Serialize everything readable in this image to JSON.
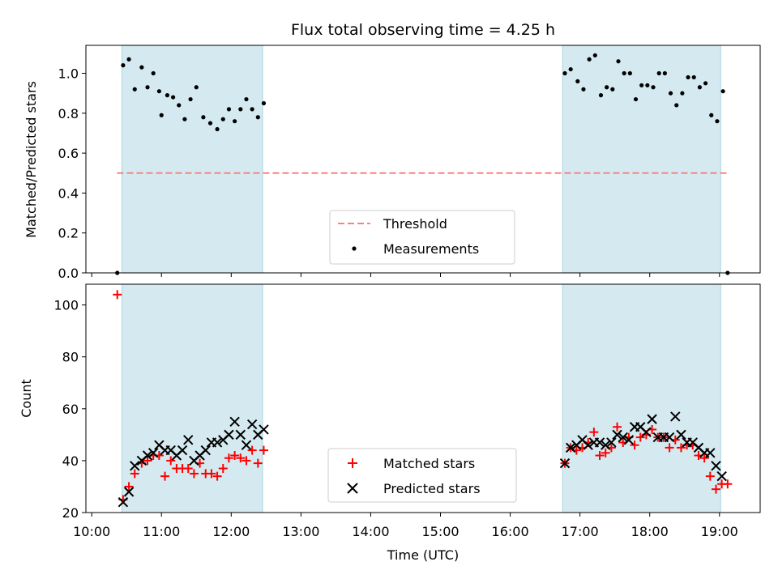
{
  "chart_data": [
    {
      "type": "scatter",
      "title": "Flux total observing time = 4.25 h",
      "xlabel": "",
      "ylabel": "Matched/Predicted stars",
      "ylim": [
        0,
        1.14
      ],
      "yticks": [
        0.0,
        0.2,
        0.4,
        0.6,
        0.8,
        1.0
      ],
      "ytick_labels": [
        "0.0",
        "0.2",
        "0.4",
        "0.6",
        "0.8",
        "1.0"
      ],
      "threshold": 0.5,
      "threshold_color": "#ff7f7f",
      "shaded_color": "#d4eaf0",
      "shaded_intervals": [
        [
          "10:26",
          "12:27"
        ],
        [
          "16:45",
          "19:01"
        ]
      ],
      "legend": {
        "location": "lower center",
        "entries": [
          {
            "label": "Threshold",
            "kind": "dashed-line",
            "color": "#ff7f7f"
          },
          {
            "label": "Measurements",
            "kind": "dot",
            "color": "#000000"
          }
        ]
      },
      "series": [
        {
          "name": "Measurements",
          "color": "#000000",
          "points": [
            [
              "10:22",
              0.0
            ],
            [
              "10:27",
              1.04
            ],
            [
              "10:32",
              1.07
            ],
            [
              "10:37",
              0.92
            ],
            [
              "10:43",
              1.03
            ],
            [
              "10:48",
              0.93
            ],
            [
              "10:53",
              1.0
            ],
            [
              "10:58",
              0.91
            ],
            [
              "11:00",
              0.79
            ],
            [
              "11:05",
              0.89
            ],
            [
              "11:10",
              0.88
            ],
            [
              "11:15",
              0.84
            ],
            [
              "11:20",
              0.77
            ],
            [
              "11:25",
              0.87
            ],
            [
              "11:30",
              0.93
            ],
            [
              "11:36",
              0.78
            ],
            [
              "11:42",
              0.75
            ],
            [
              "11:48",
              0.72
            ],
            [
              "11:53",
              0.77
            ],
            [
              "11:58",
              0.82
            ],
            [
              "12:03",
              0.76
            ],
            [
              "12:08",
              0.82
            ],
            [
              "12:13",
              0.87
            ],
            [
              "12:18",
              0.82
            ],
            [
              "12:23",
              0.78
            ],
            [
              "12:28",
              0.85
            ],
            [
              "16:47",
              1.0
            ],
            [
              "16:52",
              1.02
            ],
            [
              "16:58",
              0.96
            ],
            [
              "17:03",
              0.92
            ],
            [
              "17:08",
              1.07
            ],
            [
              "17:13",
              1.09
            ],
            [
              "17:18",
              0.89
            ],
            [
              "17:23",
              0.93
            ],
            [
              "17:28",
              0.92
            ],
            [
              "17:33",
              1.06
            ],
            [
              "17:38",
              1.0
            ],
            [
              "17:43",
              1.0
            ],
            [
              "17:48",
              0.87
            ],
            [
              "17:53",
              0.94
            ],
            [
              "17:58",
              0.94
            ],
            [
              "18:03",
              0.93
            ],
            [
              "18:08",
              1.0
            ],
            [
              "18:13",
              1.0
            ],
            [
              "18:18",
              0.9
            ],
            [
              "18:23",
              0.84
            ],
            [
              "18:28",
              0.9
            ],
            [
              "18:33",
              0.98
            ],
            [
              "18:38",
              0.98
            ],
            [
              "18:43",
              0.93
            ],
            [
              "18:48",
              0.95
            ],
            [
              "18:53",
              0.79
            ],
            [
              "18:58",
              0.76
            ],
            [
              "19:03",
              0.91
            ],
            [
              "19:07",
              0.0
            ]
          ]
        }
      ]
    },
    {
      "type": "scatter",
      "title": "",
      "xlabel": "Time (UTC)",
      "ylabel": "Count",
      "ylim": [
        20,
        108
      ],
      "yticks": [
        20,
        40,
        60,
        80,
        100
      ],
      "ytick_labels": [
        "20",
        "40",
        "60",
        "80",
        "100"
      ],
      "xlim": [
        "09:55",
        "19:35"
      ],
      "xticks": [
        "10:00",
        "11:00",
        "12:00",
        "13:00",
        "14:00",
        "15:00",
        "16:00",
        "17:00",
        "18:00",
        "19:00"
      ],
      "xtick_labels": [
        "10:00",
        "11:00",
        "12:00",
        "13:00",
        "14:00",
        "15:00",
        "16:00",
        "17:00",
        "18:00",
        "19:00"
      ],
      "shaded_color": "#d4eaf0",
      "shaded_intervals": [
        [
          "10:26",
          "12:27"
        ],
        [
          "16:45",
          "19:01"
        ]
      ],
      "legend": {
        "location": "lower center",
        "entries": [
          {
            "label": "Matched stars",
            "kind": "plus",
            "color": "#ff0000"
          },
          {
            "label": "Predicted stars",
            "kind": "x",
            "color": "#000000"
          }
        ]
      },
      "series": [
        {
          "name": "Matched stars",
          "color": "#ff0000",
          "marker": "plus",
          "points": [
            [
              "10:22",
              104
            ],
            [
              "10:27",
              25
            ],
            [
              "10:32",
              30
            ],
            [
              "10:37",
              35
            ],
            [
              "10:43",
              39
            ],
            [
              "10:48",
              40
            ],
            [
              "10:53",
              42
            ],
            [
              "10:58",
              42
            ],
            [
              "11:03",
              34
            ],
            [
              "11:08",
              40
            ],
            [
              "11:13",
              37
            ],
            [
              "11:18",
              37
            ],
            [
              "11:23",
              37
            ],
            [
              "11:28",
              35
            ],
            [
              "11:33",
              39
            ],
            [
              "11:38",
              35
            ],
            [
              "11:43",
              35
            ],
            [
              "11:48",
              34
            ],
            [
              "11:53",
              37
            ],
            [
              "11:58",
              41
            ],
            [
              "12:03",
              42
            ],
            [
              "12:08",
              41
            ],
            [
              "12:13",
              40
            ],
            [
              "12:18",
              44
            ],
            [
              "12:23",
              39
            ],
            [
              "12:28",
              44
            ],
            [
              "16:47",
              39
            ],
            [
              "16:52",
              45
            ],
            [
              "16:57",
              44
            ],
            [
              "17:02",
              45
            ],
            [
              "17:07",
              47
            ],
            [
              "17:12",
              51
            ],
            [
              "17:17",
              42
            ],
            [
              "17:22",
              43
            ],
            [
              "17:27",
              45
            ],
            [
              "17:32",
              53
            ],
            [
              "17:37",
              47
            ],
            [
              "17:42",
              49
            ],
            [
              "17:47",
              46
            ],
            [
              "17:52",
              49
            ],
            [
              "17:57",
              50
            ],
            [
              "18:02",
              52
            ],
            [
              "18:07",
              49
            ],
            [
              "18:12",
              49
            ],
            [
              "18:17",
              45
            ],
            [
              "18:22",
              48
            ],
            [
              "18:27",
              45
            ],
            [
              "18:32",
              46
            ],
            [
              "18:37",
              46
            ],
            [
              "18:42",
              42
            ],
            [
              "18:47",
              41
            ],
            [
              "18:52",
              34
            ],
            [
              "18:57",
              29
            ],
            [
              "19:02",
              31
            ],
            [
              "19:07",
              31
            ]
          ]
        },
        {
          "name": "Predicted stars",
          "color": "#000000",
          "marker": "x",
          "points": [
            [
              "10:27",
              24
            ],
            [
              "10:32",
              28
            ],
            [
              "10:37",
              38
            ],
            [
              "10:43",
              40
            ],
            [
              "10:48",
              42
            ],
            [
              "10:53",
              43
            ],
            [
              "10:58",
              46
            ],
            [
              "11:03",
              44
            ],
            [
              "11:08",
              44
            ],
            [
              "11:13",
              42
            ],
            [
              "11:18",
              44
            ],
            [
              "11:23",
              48
            ],
            [
              "11:28",
              40
            ],
            [
              "11:33",
              42
            ],
            [
              "11:38",
              44
            ],
            [
              "11:43",
              47
            ],
            [
              "11:48",
              47
            ],
            [
              "11:53",
              48
            ],
            [
              "11:58",
              50
            ],
            [
              "12:03",
              55
            ],
            [
              "12:08",
              50
            ],
            [
              "12:13",
              46
            ],
            [
              "12:18",
              54
            ],
            [
              "12:23",
              50
            ],
            [
              "12:28",
              52
            ],
            [
              "16:47",
              39
            ],
            [
              "16:52",
              45
            ],
            [
              "16:57",
              46
            ],
            [
              "17:02",
              48
            ],
            [
              "17:07",
              46
            ],
            [
              "17:12",
              47
            ],
            [
              "17:17",
              47
            ],
            [
              "17:22",
              46
            ],
            [
              "17:27",
              47
            ],
            [
              "17:32",
              50
            ],
            [
              "17:37",
              49
            ],
            [
              "17:42",
              48
            ],
            [
              "17:47",
              53
            ],
            [
              "17:52",
              53
            ],
            [
              "17:57",
              51
            ],
            [
              "18:02",
              56
            ],
            [
              "18:07",
              49
            ],
            [
              "18:12",
              49
            ],
            [
              "18:17",
              49
            ],
            [
              "18:22",
              57
            ],
            [
              "18:27",
              50
            ],
            [
              "18:32",
              47
            ],
            [
              "18:37",
              47
            ],
            [
              "18:42",
              45
            ],
            [
              "18:47",
              43
            ],
            [
              "18:52",
              43
            ],
            [
              "18:57",
              38
            ],
            [
              "19:02",
              34
            ]
          ]
        }
      ]
    }
  ]
}
